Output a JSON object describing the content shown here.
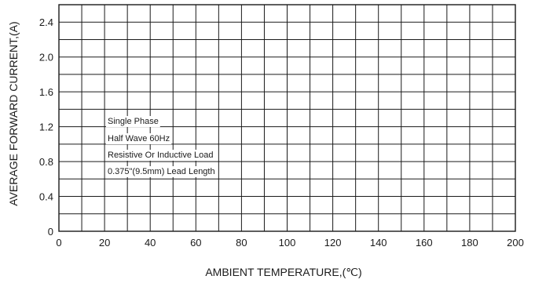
{
  "chart_data": {
    "type": "line",
    "title": "",
    "xlabel": "AMBIENT TEMPERATURE,(℃)",
    "ylabel": "AVERAGE FORWARD CURRENT,(A)",
    "xlim": [
      0,
      200
    ],
    "ylim": [
      0,
      2.6
    ],
    "x_ticks": [
      0,
      20,
      40,
      60,
      80,
      100,
      120,
      140,
      160,
      180,
      200
    ],
    "x_tick_labels": [
      "0",
      "20",
      "40",
      "60",
      "80",
      "100",
      "120",
      "140",
      "160",
      "180",
      "200"
    ],
    "y_ticks": [
      0,
      0.4,
      0.8,
      1.2,
      1.6,
      2.0,
      2.4
    ],
    "y_tick_labels": [
      "0",
      "0.4",
      "0.8",
      "1.2",
      "1.6",
      "2.0",
      "2.4"
    ],
    "grid": true,
    "grid_x_step": 10,
    "grid_y_step": 0.2,
    "series": [],
    "annotations": [
      "Single Phase",
      "Half Wave 60Hz",
      "Resistive Or Inductive Load",
      "0.375\"(9.5mm) Lead Length"
    ],
    "colors": {
      "grid": "#1a1a1a",
      "text": "#1a1a1a",
      "background": "#ffffff"
    }
  }
}
